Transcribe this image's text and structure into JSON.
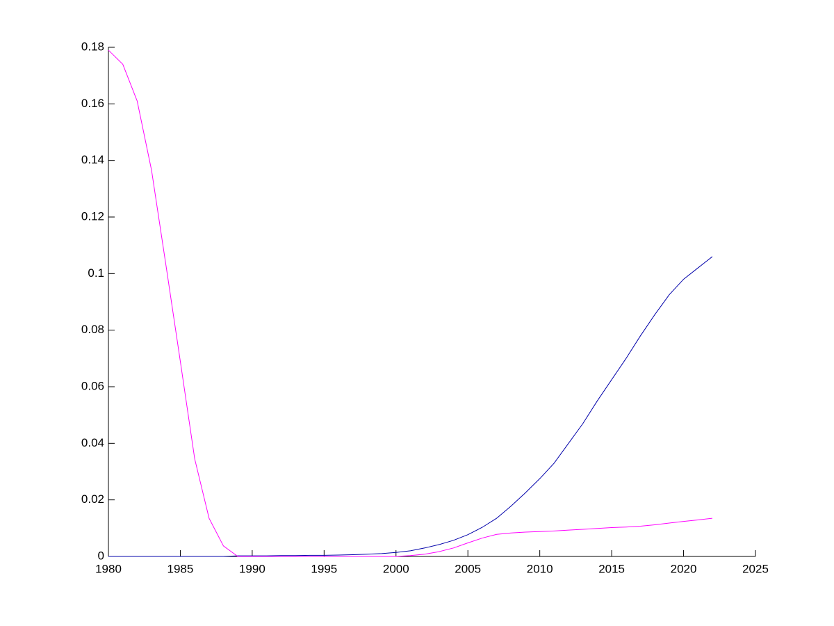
{
  "chart_data": {
    "type": "line",
    "x": [
      1980,
      1981,
      1982,
      1983,
      1984,
      1985,
      1986,
      1987,
      1988,
      1989,
      1990,
      1991,
      1992,
      1993,
      1994,
      1995,
      1996,
      1997,
      1998,
      1999,
      2000,
      2001,
      2002,
      2003,
      2004,
      2005,
      2006,
      2007,
      2008,
      2009,
      2010,
      2011,
      2012,
      2013,
      2014,
      2015,
      2016,
      2017,
      2018,
      2019,
      2020,
      2021,
      2022
    ],
    "series": [
      {
        "color": "#0000aa",
        "values": [
          0,
          0,
          0,
          0,
          0,
          0,
          0,
          0,
          0,
          0.0002,
          0.0002,
          0.0002,
          0.0003,
          0.0003,
          0.0004,
          0.0004,
          0.0005,
          0.0006,
          0.0008,
          0.001,
          0.0014,
          0.002,
          0.003,
          0.0042,
          0.0057,
          0.0077,
          0.0103,
          0.0135,
          0.0178,
          0.0225,
          0.0275,
          0.033,
          0.04,
          0.047,
          0.055,
          0.0625,
          0.07,
          0.078,
          0.0855,
          0.0925,
          0.098,
          0.102,
          0.106
        ]
      },
      {
        "color": "#ff00ff",
        "values": [
          0.179,
          0.174,
          0.161,
          0.1365,
          0.103,
          0.069,
          0.0345,
          0.0135,
          0.0037,
          0,
          0,
          0,
          0,
          0,
          0,
          0,
          0,
          0,
          0,
          0,
          0,
          0.0003,
          0.0008,
          0.0017,
          0.003,
          0.0048,
          0.0065,
          0.0078,
          0.0083,
          0.0086,
          0.0088,
          0.009,
          0.0093,
          0.0096,
          0.0099,
          0.0102,
          0.0104,
          0.0107,
          0.0112,
          0.0118,
          0.0124,
          0.0129,
          0.0135
        ]
      }
    ],
    "xlim": [
      1980,
      2025
    ],
    "xticks": [
      1980,
      1985,
      1990,
      1995,
      2000,
      2005,
      2010,
      2015,
      2020,
      2025
    ],
    "ylim": [
      0,
      0.18
    ],
    "yticks": [
      0,
      0.02,
      0.04,
      0.06,
      0.08,
      0.1,
      0.12,
      0.14,
      0.16,
      0.18
    ],
    "grid": false
  }
}
